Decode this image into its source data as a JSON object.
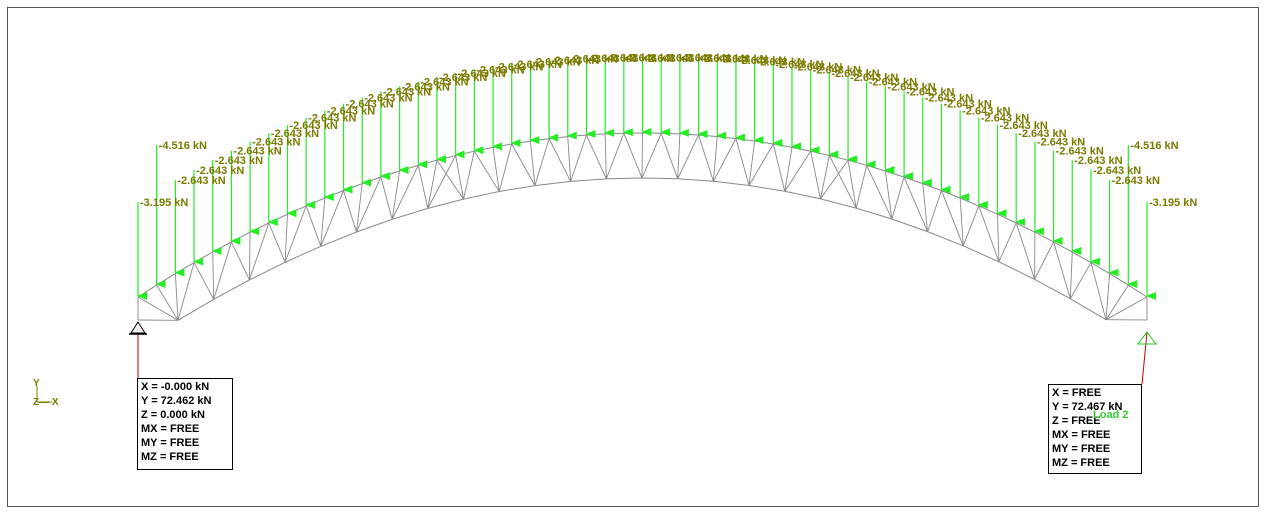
{
  "colors": {
    "frame": "#555555",
    "truss": "#888888",
    "load_arrow": "#22ee22",
    "load_text": "#7a7a00",
    "reaction_line": "#cc0000",
    "support_right": "#22cc22",
    "load_case": "#33cc33"
  },
  "axes": {
    "y": "Y",
    "zx": "Z— X"
  },
  "load_case": "Load 2",
  "loads": {
    "end_left": "-3.195 kN",
    "end_right": "-3.195 kN",
    "near_end_left": "-4.516 kN",
    "near_end_right": "-4.516 kN",
    "interior": "-2.643 kN",
    "top_cluster": "-2.643 kN"
  },
  "reactions": {
    "left": [
      "X = -0.000 kN",
      "Y = 72.462 kN",
      "Z = 0.000 kN",
      "MX = FREE",
      "MY = FREE",
      "MZ = FREE"
    ],
    "right": [
      "X = FREE",
      "Y = 72.467 kN",
      "Z = FREE",
      "MX = FREE",
      "MY = FREE",
      "MZ = FREE"
    ]
  }
}
